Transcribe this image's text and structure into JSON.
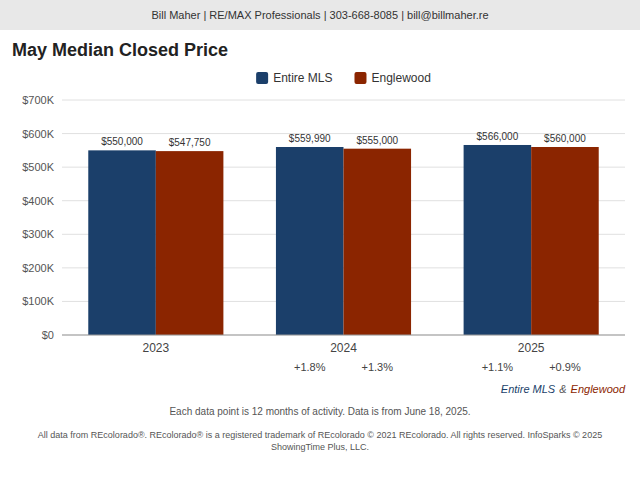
{
  "chart_data": {
    "type": "bar",
    "title": "May Median Closed Price",
    "categories": [
      "2023",
      "2024",
      "2025"
    ],
    "series": [
      {
        "name": "Entire MLS",
        "color": "#1b3f6a",
        "values": [
          550000,
          559990,
          566000
        ],
        "value_labels": [
          "$550,000",
          "$559,990",
          "$566,000"
        ],
        "change_labels": [
          null,
          "+1.8%",
          "+1.1%"
        ]
      },
      {
        "name": "Englewood",
        "color": "#8b2500",
        "values": [
          547750,
          555000,
          560000
        ],
        "value_labels": [
          "$547,750",
          "$555,000",
          "$560,000"
        ],
        "change_labels": [
          null,
          "+1.3%",
          "+0.9%"
        ]
      }
    ],
    "ylim": [
      0,
      700000
    ],
    "yticks": [
      {
        "value": 0,
        "label": "$0"
      },
      {
        "value": 100000,
        "label": "$100K"
      },
      {
        "value": 200000,
        "label": "$200K"
      },
      {
        "value": 300000,
        "label": "$300K"
      },
      {
        "value": 400000,
        "label": "$400K"
      },
      {
        "value": 500000,
        "label": "$500K"
      },
      {
        "value": 600000,
        "label": "$600K"
      },
      {
        "value": 700000,
        "label": "$700K"
      }
    ],
    "grid": true,
    "legend": "top",
    "data_labels": true,
    "annotations": [
      {
        "text": "Bill Maher | RE/MAX Professionals | 303-668-8085 | bill@billmaher.re"
      },
      {
        "parts": [
          {
            "text": "Entire MLS",
            "color": "#1b3f6a"
          },
          {
            "text": "&"
          },
          {
            "text": "Englewood",
            "color": "#8b2500"
          }
        ]
      },
      {
        "text": "Each data point is 12 months of activity. Data is from June 18, 2025."
      },
      {
        "text": "All data from REcolorado®. REcolorado® is a registered trademark of REcolorado © 2021 REcolorado. All rights reserved. InfoSparks © 2025 ShowingTime Plus, LLC."
      }
    ]
  }
}
